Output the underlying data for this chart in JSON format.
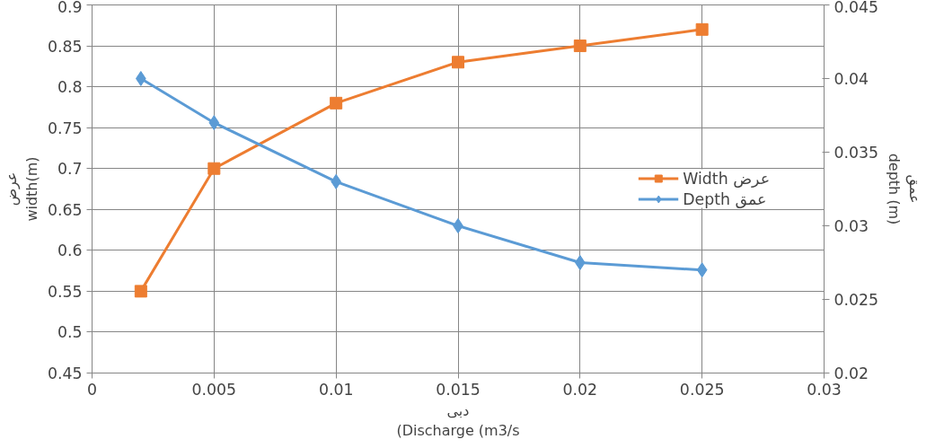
{
  "chart_data": {
    "type": "line",
    "xlabel": "دبی\n(Discharge (m3/s",
    "ylabel": "عرض\nwidth(m)",
    "y2label": "عمق\ndepth (m)",
    "x": [
      0.002,
      0.005,
      0.01,
      0.015,
      0.02,
      0.025
    ],
    "xlim": [
      0,
      0.03
    ],
    "xticks": [
      0,
      0.005,
      0.01,
      0.015,
      0.02,
      0.025,
      0.03
    ],
    "ylim": [
      0.45,
      0.9
    ],
    "yticks": [
      0.45,
      0.5,
      0.55,
      0.6,
      0.65,
      0.7,
      0.75,
      0.8,
      0.85,
      0.9
    ],
    "y2lim": [
      0.02,
      0.045
    ],
    "y2ticks": [
      0.02,
      0.025,
      0.03,
      0.035,
      0.04,
      0.045
    ],
    "series": [
      {
        "name": "Width عرض",
        "color": "#ed7d31",
        "marker": "square",
        "values": [
          0.55,
          0.7,
          0.78,
          0.83,
          0.85,
          0.87
        ]
      },
      {
        "name": "Depth عمق",
        "color": "#5b9bd5",
        "marker": "diamond",
        "axis": "y2",
        "values": [
          0.04,
          0.037,
          0.033,
          0.03,
          0.0275,
          0.027
        ]
      }
    ],
    "grid": true,
    "legend": "right",
    "line_style": "solid"
  }
}
